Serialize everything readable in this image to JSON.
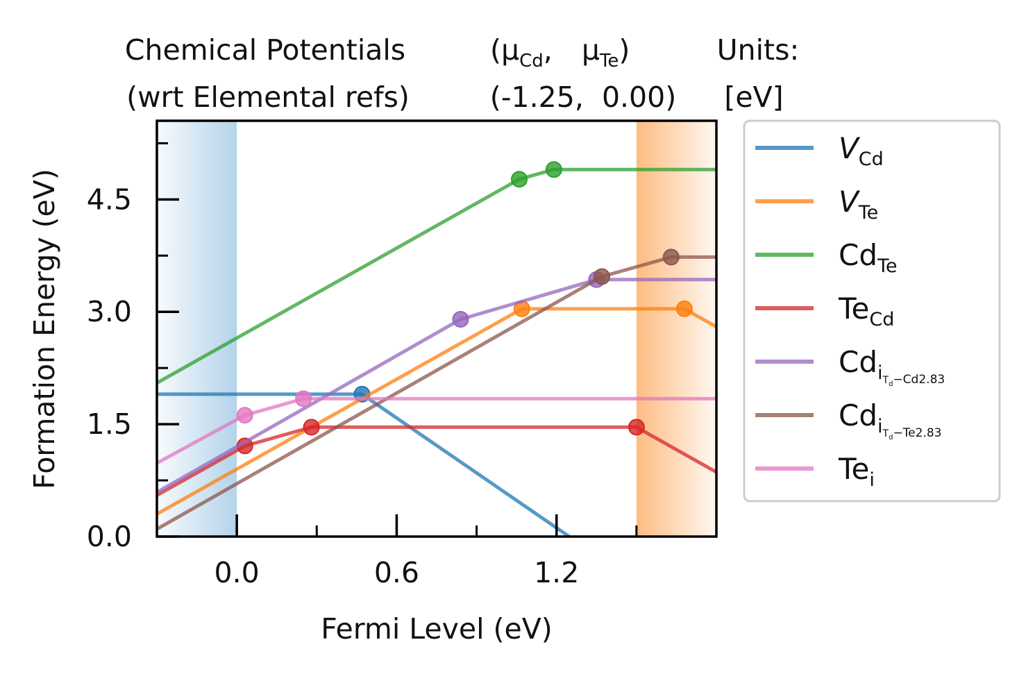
{
  "header": {
    "left": [
      "Chemical Potentials",
      "(wrt Elemental refs)"
    ],
    "mu_open": "(μ",
    "mu_cd_sub": "Cd",
    "mu_sep": ",",
    "mu_te": "μ",
    "mu_te_sub": "Te",
    "mu_close": ")",
    "values_line": "(-1.25,  0.00)",
    "units": [
      "Units:",
      "[eV]"
    ]
  },
  "chart_data": {
    "type": "line",
    "xlabel": "Fermi Level (eV)",
    "ylabel": "Formation Energy (eV)",
    "xlim": [
      -0.3,
      1.8
    ],
    "ylim": [
      0.0,
      5.55
    ],
    "x_ticks": [
      0.0,
      0.6,
      1.2
    ],
    "x_tick_labels": [
      "0.0",
      "0.6",
      "1.2"
    ],
    "x_minor_ticks": [
      0.3,
      0.9,
      1.5
    ],
    "y_ticks": [
      0.0,
      1.5,
      3.0,
      4.5
    ],
    "y_tick_labels": [
      "0.0",
      "1.5",
      "3.0",
      "4.5"
    ],
    "y_minor_ticks": [
      0.75,
      2.25,
      3.75,
      5.25
    ],
    "vbm_region": {
      "from": -0.3,
      "to": 0.0,
      "color": "#b3d3ea"
    },
    "cbm_region": {
      "from": 1.5,
      "to": 1.8,
      "color": "#fdbc82"
    },
    "legend_position": "right, outside plot",
    "series": [
      {
        "name": "V",
        "name_sub": "Cd",
        "italic": true,
        "color": "#1f77b4",
        "points": [
          [
            -0.3,
            1.9
          ],
          [
            0.47,
            1.9
          ],
          [
            1.8,
            -1.35
          ]
        ],
        "markers": [
          [
            0.47,
            1.9
          ]
        ]
      },
      {
        "name": "V",
        "name_sub": "Te",
        "italic": true,
        "color": "#ff7f0e",
        "points": [
          [
            -0.3,
            0.3
          ],
          [
            1.07,
            3.04
          ],
          [
            1.68,
            3.04
          ],
          [
            1.8,
            2.8
          ]
        ],
        "markers": [
          [
            1.07,
            3.04
          ],
          [
            1.68,
            3.04
          ]
        ]
      },
      {
        "name": "Cd",
        "name_sub": "Te",
        "italic": false,
        "color": "#2ca02c",
        "points": [
          [
            -0.3,
            2.05
          ],
          [
            1.06,
            4.77
          ],
          [
            1.19,
            4.9
          ],
          [
            1.8,
            4.9
          ]
        ],
        "markers": [
          [
            1.06,
            4.77
          ],
          [
            1.19,
            4.9
          ]
        ]
      },
      {
        "name": "Te",
        "name_sub": "Cd",
        "italic": false,
        "color": "#d62728",
        "points": [
          [
            -0.3,
            0.55
          ],
          [
            0.03,
            1.21
          ],
          [
            0.28,
            1.46
          ],
          [
            1.5,
            1.46
          ],
          [
            1.8,
            0.86
          ]
        ],
        "markers": [
          [
            0.03,
            1.21
          ],
          [
            0.28,
            1.46
          ],
          [
            1.5,
            1.46
          ]
        ]
      },
      {
        "name": "Cd",
        "name_sub": "i",
        "name_subsub": "T",
        "name_subsubsub": "d",
        "name_subtail": "−Cd2.83",
        "italic": false,
        "color": "#9467bd",
        "points": [
          [
            -0.3,
            0.59
          ],
          [
            0.84,
            2.9
          ],
          [
            1.35,
            3.43
          ],
          [
            1.8,
            3.43
          ]
        ],
        "markers": [
          [
            0.84,
            2.9
          ],
          [
            1.35,
            3.43
          ]
        ]
      },
      {
        "name": "Cd",
        "name_sub": "i",
        "name_subsub": "T",
        "name_subsubsub": "d",
        "name_subtail": "−Te2.83",
        "italic": false,
        "color": "#8c564b",
        "points": [
          [
            -0.3,
            0.1
          ],
          [
            1.37,
            3.47
          ],
          [
            1.63,
            3.73
          ],
          [
            1.8,
            3.73
          ]
        ],
        "markers": [
          [
            1.37,
            3.47
          ],
          [
            1.63,
            3.73
          ]
        ]
      },
      {
        "name": "Te",
        "name_sub": "i",
        "italic": false,
        "color": "#e377c2",
        "points": [
          [
            -0.3,
            0.98
          ],
          [
            0.03,
            1.62
          ],
          [
            0.25,
            1.84
          ],
          [
            1.8,
            1.84
          ]
        ],
        "markers": [
          [
            0.03,
            1.62
          ],
          [
            0.25,
            1.84
          ]
        ]
      }
    ]
  }
}
